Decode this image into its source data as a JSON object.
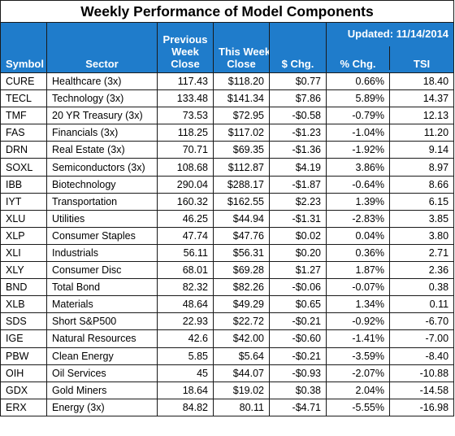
{
  "title": "Weekly Performance of Model Components",
  "updated": "Updated:  11/14/2014",
  "columns": {
    "symbol": "Symbol",
    "sector": "Sector",
    "prev_week_close": [
      "Previous",
      "Week",
      "Close"
    ],
    "this_week_close": [
      "This Week",
      "Close"
    ],
    "dollar_chg": "$ Chg.",
    "pct_chg": "% Chg.",
    "tsi": "TSI"
  },
  "colors": {
    "header_bg": "#1f7ccb",
    "header_text": "#ffffff",
    "negative": "#c00000"
  },
  "rows": [
    {
      "symbol": "CURE",
      "sector": "Healthcare (3x)",
      "prev": "117.43",
      "this": "$118.20",
      "dchg": "$0.77",
      "pchg": "0.66%",
      "tsi": "18.40"
    },
    {
      "symbol": "TECL",
      "sector": "Technology  (3x)",
      "prev": "133.48",
      "this": "$141.34",
      "dchg": "$7.86",
      "pchg": "5.89%",
      "tsi": "14.37"
    },
    {
      "symbol": "TMF",
      "sector": "20 YR Treasury  (3x)",
      "prev": "73.53",
      "this": "$72.95",
      "dchg": "-$0.58",
      "pchg": "-0.79%",
      "tsi": "12.13"
    },
    {
      "symbol": "FAS",
      "sector": "Financials  (3x)",
      "prev": "118.25",
      "this": "$117.02",
      "dchg": "-$1.23",
      "pchg": "-1.04%",
      "tsi": "11.20"
    },
    {
      "symbol": "DRN",
      "sector": "Real Estate  (3x)",
      "prev": "70.71",
      "this": "$69.35",
      "dchg": "-$1.36",
      "pchg": "-1.92%",
      "tsi": "9.14"
    },
    {
      "symbol": "SOXL",
      "sector": "Semiconductors  (3x)",
      "prev": "108.68",
      "this": "$112.87",
      "dchg": "$4.19",
      "pchg": "3.86%",
      "tsi": "8.97"
    },
    {
      "symbol": "IBB",
      "sector": "Biotechnology",
      "prev": "290.04",
      "this": "$288.17",
      "dchg": "-$1.87",
      "pchg": "-0.64%",
      "tsi": "8.66"
    },
    {
      "symbol": "IYT",
      "sector": "Transportation",
      "prev": "160.32",
      "this": "$162.55",
      "dchg": "$2.23",
      "pchg": "1.39%",
      "tsi": "6.15"
    },
    {
      "symbol": "XLU",
      "sector": "Utilities",
      "prev": "46.25",
      "this": "$44.94",
      "dchg": "-$1.31",
      "pchg": "-2.83%",
      "tsi": "3.85"
    },
    {
      "symbol": "XLP",
      "sector": "Consumer Staples",
      "prev": "47.74",
      "this": "$47.76",
      "dchg": "$0.02",
      "pchg": "0.04%",
      "tsi": "3.80"
    },
    {
      "symbol": "XLI",
      "sector": "Industrials",
      "prev": "56.11",
      "this": "$56.31",
      "dchg": "$0.20",
      "pchg": "0.36%",
      "tsi": "2.71"
    },
    {
      "symbol": "XLY",
      "sector": "Consumer Disc",
      "prev": "68.01",
      "this": "$69.28",
      "dchg": "$1.27",
      "pchg": "1.87%",
      "tsi": "2.36"
    },
    {
      "symbol": "BND",
      "sector": "Total Bond",
      "prev": "82.32",
      "this": "$82.26",
      "dchg": "-$0.06",
      "pchg": "-0.07%",
      "tsi": "0.38"
    },
    {
      "symbol": "XLB",
      "sector": "Materials",
      "prev": "48.64",
      "this": "$49.29",
      "dchg": "$0.65",
      "pchg": "1.34%",
      "tsi": "0.11"
    },
    {
      "symbol": "SDS",
      "sector": "Short S&P500",
      "prev": "22.93",
      "this": "$22.72",
      "dchg": "-$0.21",
      "pchg": "-0.92%",
      "tsi": "-6.70"
    },
    {
      "symbol": "IGE",
      "sector": "Natural Resources",
      "prev": "42.6",
      "this": "$42.00",
      "dchg": "-$0.60",
      "pchg": "-1.41%",
      "tsi": "-7.00"
    },
    {
      "symbol": "PBW",
      "sector": "Clean Energy",
      "prev": "5.85",
      "this": "$5.64",
      "dchg": "-$0.21",
      "pchg": "-3.59%",
      "tsi": "-8.40"
    },
    {
      "symbol": "OIH",
      "sector": "Oil Services",
      "prev": "45",
      "this": "$44.07",
      "dchg": "-$0.93",
      "pchg": "-2.07%",
      "tsi": "-10.88"
    },
    {
      "symbol": "GDX",
      "sector": "Gold Miners",
      "prev": "18.64",
      "this": "$19.02",
      "dchg": "$0.38",
      "pchg": "2.04%",
      "tsi": "-14.58"
    },
    {
      "symbol": "ERX",
      "sector": "Energy (3x)",
      "prev": "84.82",
      "this": "80.11",
      "dchg": "-$4.71",
      "pchg": "-5.55%",
      "tsi": "-16.98"
    }
  ]
}
